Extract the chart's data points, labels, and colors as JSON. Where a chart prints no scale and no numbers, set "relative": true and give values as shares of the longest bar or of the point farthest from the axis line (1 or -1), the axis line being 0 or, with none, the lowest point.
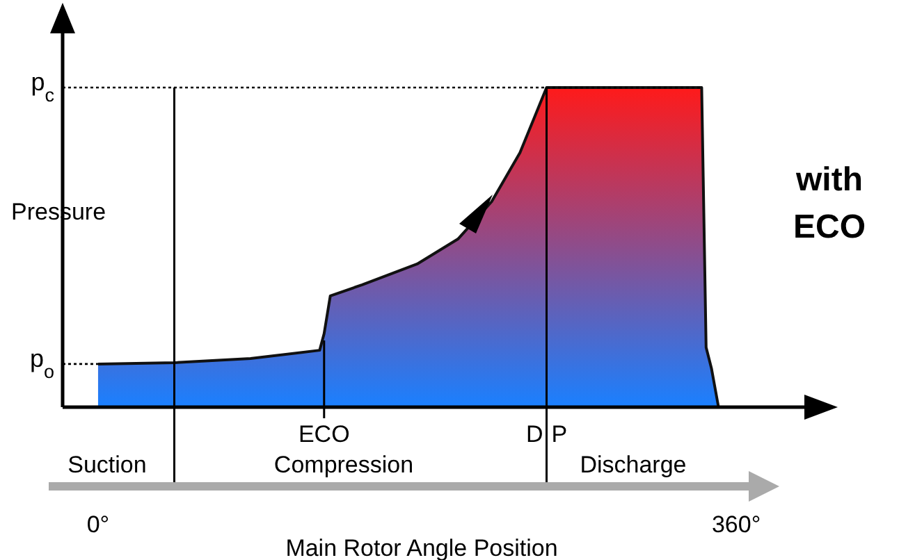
{
  "chart_data": {
    "type": "area",
    "relative": true,
    "xlabel": "Main Rotor Angle Position",
    "ylabel": "Pressure",
    "x": [
      0,
      43,
      86,
      125,
      127.5,
      131,
      149,
      180,
      203,
      222,
      238,
      253,
      340.5,
      343,
      346,
      350
    ],
    "xlim": [
      -20,
      400
    ],
    "xticks": [
      {
        "value": 0,
        "label": "0°"
      },
      {
        "value": 360,
        "label": "360°"
      }
    ],
    "series": [
      {
        "color": "#ff1a1a",
        "values": [
          0.135,
          0.139,
          0.152,
          0.178,
          0.23,
          0.348,
          0.383,
          0.448,
          0.526,
          0.643,
          0.796,
          1,
          1,
          0.187,
          0.122,
          0
        ]
      }
    ],
    "ref_lines": [
      {
        "axis": "y",
        "value": 1,
        "label": "p$_{c}$",
        "line_style": "dotted"
      },
      {
        "axis": "y",
        "value": 0.135,
        "label": "p$_{o}$",
        "line_style": "dotted"
      },
      {
        "axis": "x",
        "value": 43,
        "label": null,
        "line_style": "solid"
      },
      {
        "axis": "x",
        "value": 127.5,
        "label": "ECO",
        "line_style": "solid"
      },
      {
        "axis": "x",
        "value": 253,
        "label": "DP",
        "line_style": "solid"
      }
    ],
    "annotations": [
      "Suction",
      "Compression",
      "Discharge",
      "with ECO"
    ]
  }
}
